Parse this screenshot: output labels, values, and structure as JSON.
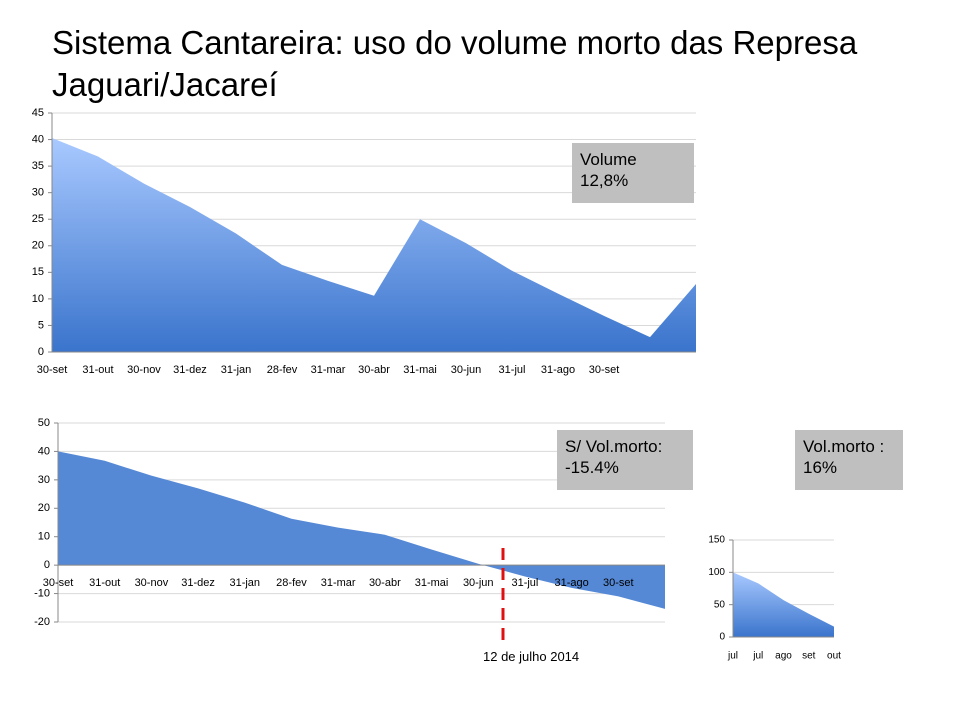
{
  "title": "Sistema Cantareira: uso do volume morto das Represa Jaguari/Jacareí",
  "chart_data": [
    {
      "type": "area",
      "categories": [
        "30-set",
        "31-out",
        "30-nov",
        "31-dez",
        "31-jan",
        "28-fev",
        "31-mar",
        "30-abr",
        "31-mai",
        "30-jun",
        "31-jul",
        "31-ago",
        "30-set",
        null,
        null
      ],
      "values": [
        40.3,
        36.8,
        31.7,
        27.3,
        22.3,
        16.4,
        13.4,
        10.6,
        25,
        20.5,
        15.3,
        11,
        6.8,
        2.8,
        12.8
      ],
      "color": "#3a74cc",
      "gradient_top": "#a9c9ff",
      "ylim": [
        0,
        45
      ],
      "yticks": [
        0,
        5,
        10,
        15,
        20,
        25,
        30,
        35,
        40,
        45
      ],
      "grid": true,
      "annotations": [
        "Volume 12,8%"
      ]
    },
    {
      "type": "area",
      "categories": [
        "30-set",
        "31-out",
        "30-nov",
        "31-dez",
        "31-jan",
        "28-fev",
        "31-mar",
        "30-abr",
        "31-mai",
        "30-jun",
        "31-jul",
        "31-ago",
        "30-set",
        null
      ],
      "values": [
        40,
        36.7,
        31.5,
        27,
        22,
        16.3,
        13.2,
        10.7,
        5.5,
        0.5,
        -4,
        -8,
        -11,
        -15.4
      ],
      "color": "#5589d6",
      "gradient_top": "#5589d6",
      "ylim": [
        -20,
        50
      ],
      "yticks": [
        -20,
        -10,
        0,
        10,
        20,
        30,
        40,
        50
      ],
      "grid": true,
      "annotations": [
        "S/ Vol.morto: -15.4%",
        "12 de julho 2014"
      ]
    },
    {
      "type": "area",
      "categories": [
        "jul",
        "jul",
        "ago",
        "set",
        "out"
      ],
      "values": [
        100,
        83,
        57,
        36,
        16
      ],
      "color": "#3a74cc",
      "gradient_top": "#a9c9ff",
      "ylim": [
        0,
        150
      ],
      "yticks": [
        0,
        50,
        100,
        150
      ],
      "grid": true,
      "annotations": [
        "Vol.morto : 16%"
      ]
    }
  ]
}
